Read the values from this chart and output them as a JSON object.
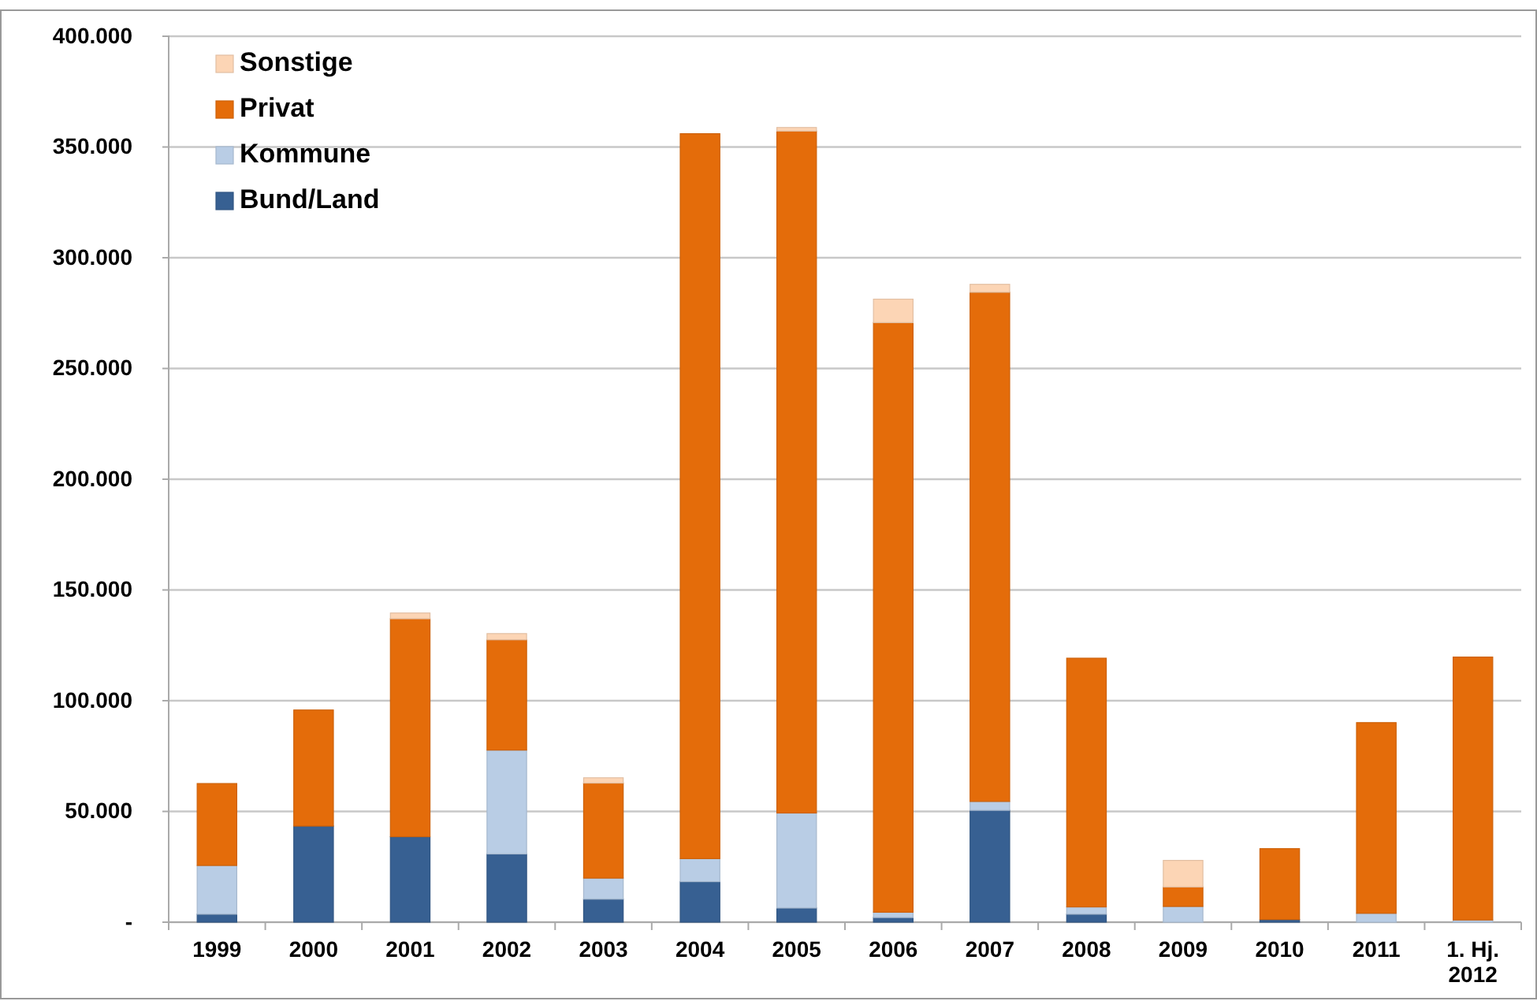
{
  "chart_data": {
    "type": "bar",
    "stacked": true,
    "categories": [
      "1999",
      "2000",
      "2001",
      "2002",
      "2003",
      "2004",
      "2005",
      "2006",
      "2007",
      "2008",
      "2009",
      "2010",
      "2011",
      "1. Hj. 2012"
    ],
    "series": [
      {
        "name": "Bund/Land",
        "color": "#376092",
        "values": [
          3600,
          43400,
          38600,
          30800,
          10400,
          18300,
          6400,
          2100,
          50500,
          3600,
          0,
          1200,
          0,
          0
        ]
      },
      {
        "name": "Kommune",
        "color": "#b9cde5",
        "values": [
          22000,
          0,
          0,
          46900,
          9500,
          10400,
          42900,
          2400,
          4000,
          3300,
          7100,
          0,
          4000,
          1000
        ]
      },
      {
        "name": "Privat",
        "color": "#e46c0a",
        "values": [
          37000,
          52400,
          98400,
          49800,
          42900,
          327300,
          307900,
          266200,
          229900,
          112300,
          8800,
          32000,
          86100,
          118700
        ]
      },
      {
        "name": "Sonstige",
        "color": "#fcd5b5",
        "values": [
          0,
          0,
          2600,
          2800,
          2400,
          0,
          1600,
          10600,
          3600,
          0,
          12000,
          0,
          0,
          0
        ]
      }
    ],
    "ylim": [
      0,
      400000
    ],
    "yticks": [
      {
        "value": 0,
        "label": "-"
      },
      {
        "value": 50000,
        "label": "50.000"
      },
      {
        "value": 100000,
        "label": "100.000"
      },
      {
        "value": 150000,
        "label": "150.000"
      },
      {
        "value": 200000,
        "label": "200.000"
      },
      {
        "value": 250000,
        "label": "250.000"
      },
      {
        "value": 300000,
        "label": "300.000"
      },
      {
        "value": 350000,
        "label": "350.000"
      },
      {
        "value": 400000,
        "label": "400.000"
      }
    ],
    "grid": "y",
    "legend": "top left"
  }
}
